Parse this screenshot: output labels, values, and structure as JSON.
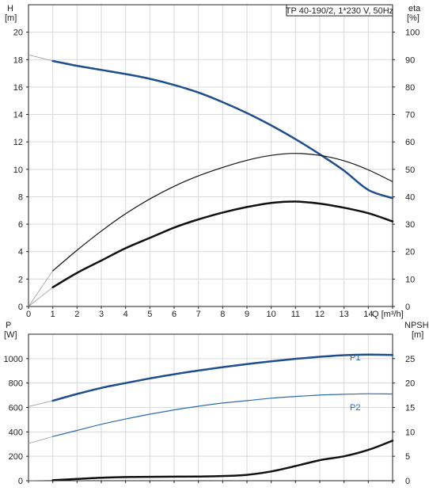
{
  "chart_data": [
    {
      "type": "line",
      "title": "TP 40-190/2, 1*230 V, 50Hz",
      "xlabel": "Q [m³/h]",
      "x_ticks": [
        "0",
        "1",
        "2",
        "3",
        "4",
        "5",
        "6",
        "7",
        "8",
        "9",
        "10",
        "11",
        "12",
        "13",
        "14"
      ],
      "xlim": [
        0,
        15
      ],
      "left_axis": {
        "label_line1": "H",
        "label_line2": "[m]",
        "ticks": [
          "0",
          "2",
          "4",
          "6",
          "8",
          "10",
          "12",
          "14",
          "16",
          "18",
          "20"
        ],
        "ylim": [
          0,
          22
        ]
      },
      "right_axis": {
        "label_line1": "eta",
        "label_line2": "[%]",
        "ticks": [
          "0",
          "10",
          "20",
          "30",
          "40",
          "50",
          "60",
          "70",
          "80",
          "90",
          "100"
        ],
        "ylim": [
          0,
          110
        ]
      },
      "grid": true,
      "series": [
        {
          "axis": "left",
          "color": "#1f4e8c",
          "width": 2.5,
          "x": [
            1,
            2,
            3,
            4,
            5,
            6,
            7,
            8,
            9,
            10,
            11,
            12,
            13,
            14,
            15
          ],
          "y": [
            17.9,
            17.55,
            17.25,
            16.95,
            16.6,
            16.15,
            15.6,
            14.9,
            14.1,
            13.2,
            12.2,
            11.1,
            9.9,
            8.5,
            7.9
          ],
          "extension": {
            "x": [
              0,
              1
            ],
            "y": [
              18.35,
              17.9
            ]
          }
        },
        {
          "axis": "right",
          "color": "#111111",
          "width": 1.2,
          "x": [
            1,
            2,
            3,
            4,
            5,
            6,
            7,
            8,
            9,
            10,
            11,
            12,
            13,
            14,
            15
          ],
          "y": [
            13,
            20.5,
            27.5,
            33.8,
            39.2,
            43.8,
            47.6,
            50.7,
            53.3,
            55.1,
            55.8,
            55.1,
            53.1,
            49.8,
            45.5
          ],
          "extension": {
            "x": [
              0,
              1
            ],
            "y": [
              0,
              13
            ]
          }
        },
        {
          "axis": "left",
          "color": "#111111",
          "width": 2.5,
          "x": [
            1,
            2,
            3,
            4,
            5,
            6,
            7,
            8,
            9,
            10,
            11,
            12,
            13,
            14,
            15
          ],
          "y": [
            1.4,
            2.45,
            3.35,
            4.25,
            5.0,
            5.75,
            6.35,
            6.85,
            7.25,
            7.55,
            7.65,
            7.5,
            7.2,
            6.8,
            6.2
          ],
          "extension": {
            "x": [
              0,
              1
            ],
            "y": [
              0,
              1.4
            ]
          }
        }
      ]
    },
    {
      "type": "line",
      "xlim": [
        0,
        15
      ],
      "left_axis": {
        "label_line1": "P",
        "label_line2": "[W]",
        "ticks": [
          "0",
          "200",
          "400",
          "600",
          "800",
          "1000"
        ],
        "ylim": [
          0,
          1200
        ]
      },
      "right_axis": {
        "label_line1": "NPSH",
        "label_line2": "[m]",
        "ticks": [
          "0",
          "5",
          "10",
          "15",
          "20",
          "25"
        ],
        "ylim": [
          0,
          30
        ]
      },
      "grid": true,
      "series": [
        {
          "name": "P1",
          "axis": "left",
          "color": "#1f4e8c",
          "width": 2.5,
          "x": [
            1,
            2,
            3,
            4,
            5,
            6,
            7,
            8,
            9,
            10,
            11,
            12,
            13,
            14,
            15
          ],
          "y": [
            655,
            710,
            760,
            800,
            838,
            872,
            902,
            930,
            955,
            978,
            998,
            1015,
            1028,
            1033,
            1030
          ],
          "extension": {
            "x": [
              0,
              1
            ],
            "y": [
              608,
              655
            ]
          }
        },
        {
          "name": "P2",
          "axis": "left",
          "color": "#2d6ab0",
          "width": 1.2,
          "x": [
            1,
            2,
            3,
            4,
            5,
            6,
            7,
            8,
            9,
            10,
            11,
            12,
            13,
            14,
            15
          ],
          "y": [
            362,
            412,
            462,
            505,
            545,
            580,
            610,
            636,
            656,
            676,
            690,
            701,
            708,
            712,
            710
          ],
          "extension": {
            "x": [
              0,
              1
            ],
            "y": [
              305,
              362
            ]
          }
        },
        {
          "axis": "right",
          "color": "#111111",
          "width": 2.5,
          "x": [
            1,
            2,
            3,
            4,
            5,
            6,
            7,
            8,
            9,
            10,
            11,
            12,
            13,
            14,
            15
          ],
          "y": [
            0.1,
            0.35,
            0.6,
            0.75,
            0.8,
            0.82,
            0.85,
            0.95,
            1.2,
            1.9,
            3.0,
            4.2,
            5.0,
            6.3,
            8.2
          ],
          "extension": {
            "x": [
              0,
              1
            ],
            "y": [
              0.05,
              0.1
            ]
          }
        }
      ]
    }
  ]
}
